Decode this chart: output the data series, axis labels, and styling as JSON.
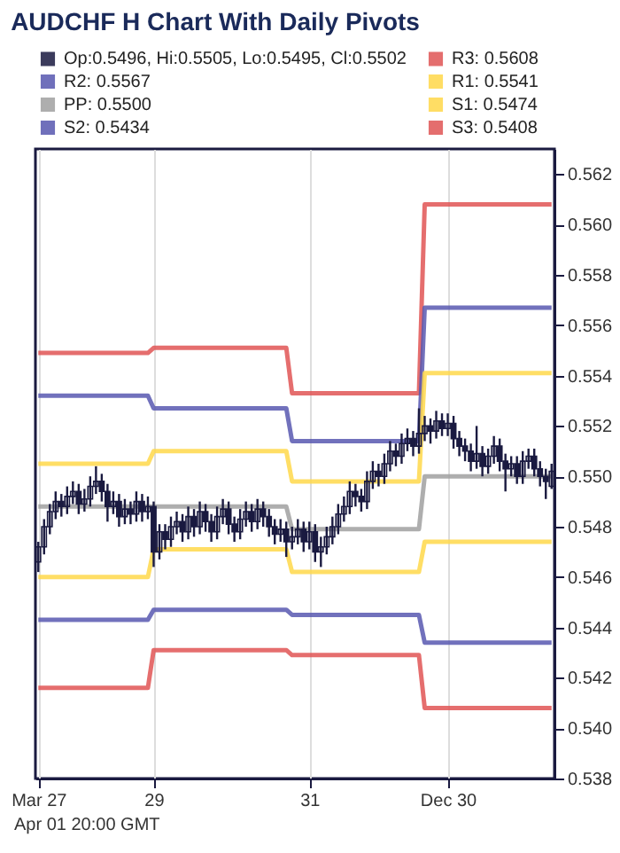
{
  "chart_data": {
    "type": "candlestick",
    "title": "AUDCHF H Chart With Daily Pivots",
    "annotations": [
      "Apr 01 20:00 GMT"
    ],
    "categories": [
      "Mar 27",
      null,
      null,
      null,
      null,
      null,
      null,
      null,
      null,
      null,
      null,
      null,
      null,
      null,
      null,
      null,
      null,
      null,
      null,
      null,
      "29",
      null,
      null,
      null,
      null,
      null,
      null,
      null,
      null,
      null,
      null,
      null,
      null,
      null,
      null,
      null,
      null,
      null,
      null,
      null,
      null,
      null,
      null,
      null,
      null,
      null,
      null,
      "31",
      null,
      null,
      null,
      null,
      null,
      null,
      null,
      null,
      null,
      null,
      null,
      null,
      null,
      null,
      null,
      null,
      null,
      null,
      null,
      null,
      null,
      null,
      null,
      "Dec 30",
      null,
      null,
      null,
      null,
      null,
      null,
      null,
      null,
      null,
      null,
      null,
      null,
      null,
      null,
      null,
      null,
      null,
      null
    ],
    "ylim": [
      0.538,
      0.563
    ],
    "yticks": [
      0.538,
      {
        "value": 0.54,
        "label": "0.540"
      },
      0.542,
      0.544,
      0.546,
      0.548,
      {
        "value": 0.55,
        "label": "0.550"
      },
      0.552,
      0.554,
      0.556,
      0.558,
      {
        "value": 0.56,
        "label": "0.560"
      },
      0.562
    ],
    "grid": "x",
    "legend": "top",
    "series": [
      {
        "type": "candlestick",
        "name": "Op:0.5496, Hi:0.5505, Lo:0.5495, Cl:0.5502",
        "color": "#1a1a40",
        "ohlc": [
          [
            0.5466,
            0.5474,
            0.5462,
            0.5472
          ],
          [
            0.5472,
            0.5483,
            0.5469,
            0.548
          ],
          [
            0.548,
            0.5489,
            0.5477,
            0.5486
          ],
          [
            0.5486,
            0.5494,
            0.5483,
            0.549
          ],
          [
            0.549,
            0.5493,
            0.5484,
            0.5488
          ],
          [
            0.5488,
            0.5496,
            0.5485,
            0.5492
          ],
          [
            0.5492,
            0.5498,
            0.5489,
            0.5494
          ],
          [
            0.5494,
            0.5497,
            0.5485,
            0.5489
          ],
          [
            0.5489,
            0.5495,
            0.5486,
            0.5491
          ],
          [
            0.5491,
            0.55,
            0.5488,
            0.5496
          ],
          [
            0.5496,
            0.5504,
            0.5493,
            0.5498
          ],
          [
            0.5498,
            0.5501,
            0.549,
            0.5494
          ],
          [
            0.5494,
            0.5497,
            0.5482,
            0.5488
          ],
          [
            0.5488,
            0.5494,
            0.5485,
            0.549
          ],
          [
            0.549,
            0.5493,
            0.548,
            0.5484
          ],
          [
            0.5484,
            0.5491,
            0.5481,
            0.5487
          ],
          [
            0.5487,
            0.549,
            0.5481,
            0.5485
          ],
          [
            0.5485,
            0.5494,
            0.5482,
            0.549
          ],
          [
            0.549,
            0.5493,
            0.5482,
            0.5486
          ],
          [
            0.5486,
            0.5492,
            0.5483,
            0.5488
          ],
          [
            0.5488,
            0.549,
            0.5464,
            0.547
          ],
          [
            0.547,
            0.5481,
            0.5467,
            0.5478
          ],
          [
            0.5478,
            0.5481,
            0.5471,
            0.5475
          ],
          [
            0.5475,
            0.5484,
            0.5472,
            0.548
          ],
          [
            0.548,
            0.5486,
            0.5477,
            0.5482
          ],
          [
            0.5482,
            0.5485,
            0.5474,
            0.5478
          ],
          [
            0.5478,
            0.5488,
            0.5475,
            0.5484
          ],
          [
            0.5484,
            0.5487,
            0.5476,
            0.548
          ],
          [
            0.548,
            0.549,
            0.5477,
            0.5486
          ],
          [
            0.5486,
            0.5489,
            0.5478,
            0.5482
          ],
          [
            0.5482,
            0.5485,
            0.5474,
            0.5478
          ],
          [
            0.5478,
            0.5488,
            0.5475,
            0.5484
          ],
          [
            0.5484,
            0.5491,
            0.5481,
            0.5487
          ],
          [
            0.5487,
            0.549,
            0.5477,
            0.5481
          ],
          [
            0.5481,
            0.5484,
            0.5474,
            0.5478
          ],
          [
            0.5478,
            0.5487,
            0.5475,
            0.5483
          ],
          [
            0.5483,
            0.549,
            0.548,
            0.5486
          ],
          [
            0.5486,
            0.5489,
            0.5478,
            0.5482
          ],
          [
            0.5482,
            0.5491,
            0.5479,
            0.5487
          ],
          [
            0.5487,
            0.549,
            0.548,
            0.5484
          ],
          [
            0.5484,
            0.5487,
            0.5476,
            0.548
          ],
          [
            0.548,
            0.5483,
            0.5473,
            0.5477
          ],
          [
            0.5477,
            0.5483,
            0.5474,
            0.5479
          ],
          [
            0.5479,
            0.5482,
            0.5468,
            0.5474
          ],
          [
            0.5474,
            0.548,
            0.5471,
            0.5476
          ],
          [
            0.5476,
            0.5483,
            0.5473,
            0.5479
          ],
          [
            0.5479,
            0.5482,
            0.547,
            0.5474
          ],
          [
            0.5474,
            0.5482,
            0.5471,
            0.5478
          ],
          [
            0.5478,
            0.5481,
            0.5466,
            0.547
          ],
          [
            0.547,
            0.5476,
            0.5464,
            0.5472
          ],
          [
            0.5472,
            0.548,
            0.5469,
            0.5476
          ],
          [
            0.5476,
            0.5484,
            0.5473,
            0.548
          ],
          [
            0.548,
            0.5489,
            0.5477,
            0.5485
          ],
          [
            0.5485,
            0.5492,
            0.5482,
            0.5488
          ],
          [
            0.5488,
            0.5498,
            0.5485,
            0.5494
          ],
          [
            0.5494,
            0.5497,
            0.5488,
            0.5492
          ],
          [
            0.5492,
            0.5495,
            0.5486,
            0.549
          ],
          [
            0.549,
            0.5502,
            0.5487,
            0.5498
          ],
          [
            0.5498,
            0.5506,
            0.5495,
            0.5502
          ],
          [
            0.5502,
            0.5505,
            0.5496,
            0.55
          ],
          [
            0.55,
            0.5509,
            0.5497,
            0.5505
          ],
          [
            0.5505,
            0.5514,
            0.5502,
            0.551
          ],
          [
            0.551,
            0.5513,
            0.5504,
            0.5508
          ],
          [
            0.5508,
            0.5517,
            0.5505,
            0.5513
          ],
          [
            0.5513,
            0.5519,
            0.551,
            0.5515
          ],
          [
            0.5515,
            0.5518,
            0.5508,
            0.5512
          ],
          [
            0.5512,
            0.5527,
            0.5509,
            0.5517
          ],
          [
            0.5517,
            0.5524,
            0.5514,
            0.552
          ],
          [
            0.552,
            0.5523,
            0.5513,
            0.5518
          ],
          [
            0.5518,
            0.5526,
            0.5515,
            0.5522
          ],
          [
            0.5522,
            0.5525,
            0.5516,
            0.5519
          ],
          [
            0.5519,
            0.5525,
            0.5516,
            0.5521
          ],
          [
            0.5521,
            0.5524,
            0.5511,
            0.5515
          ],
          [
            0.5515,
            0.5518,
            0.5508,
            0.5512
          ],
          [
            0.5512,
            0.5515,
            0.5506,
            0.551
          ],
          [
            0.551,
            0.5513,
            0.5502,
            0.5506
          ],
          [
            0.5506,
            0.552,
            0.5503,
            0.5509
          ],
          [
            0.5509,
            0.5512,
            0.55,
            0.5504
          ],
          [
            0.5504,
            0.5511,
            0.5501,
            0.5508
          ],
          [
            0.5508,
            0.5516,
            0.5505,
            0.5512
          ],
          [
            0.5512,
            0.5515,
            0.5502,
            0.5506
          ],
          [
            0.5506,
            0.5509,
            0.5494,
            0.5503
          ],
          [
            0.5503,
            0.5508,
            0.55,
            0.5505
          ],
          [
            0.5505,
            0.5508,
            0.5497,
            0.55
          ],
          [
            0.55,
            0.551,
            0.5497,
            0.5506
          ],
          [
            0.5506,
            0.5511,
            0.5503,
            0.5508
          ],
          [
            0.5508,
            0.5511,
            0.55,
            0.5503
          ],
          [
            0.5503,
            0.5506,
            0.5496,
            0.55
          ],
          [
            0.55,
            0.5503,
            0.5491,
            0.5498
          ],
          [
            0.5496,
            0.5505,
            0.5495,
            0.5502
          ]
        ]
      },
      {
        "type": "line",
        "name": "R3: 0.5608",
        "color": "#e05555",
        "values": [
          0.5549,
          0.5549,
          0.5549,
          0.5549,
          0.5549,
          0.5549,
          0.5549,
          0.5549,
          0.5549,
          0.5549,
          0.5549,
          0.5549,
          0.5549,
          0.5549,
          0.5549,
          0.5549,
          0.5549,
          0.5549,
          0.5549,
          0.5549,
          0.5551,
          0.5551,
          0.5551,
          0.5551,
          0.5551,
          0.5551,
          0.5551,
          0.5551,
          0.5551,
          0.5551,
          0.5551,
          0.5551,
          0.5551,
          0.5551,
          0.5551,
          0.5551,
          0.5551,
          0.5551,
          0.5551,
          0.5551,
          0.5551,
          0.5551,
          0.5551,
          0.5551,
          0.5533,
          0.5533,
          0.5533,
          0.5533,
          0.5533,
          0.5533,
          0.5533,
          0.5533,
          0.5533,
          0.5533,
          0.5533,
          0.5533,
          0.5533,
          0.5533,
          0.5533,
          0.5533,
          0.5533,
          0.5533,
          0.5533,
          0.5533,
          0.5533,
          0.5533,
          0.5533,
          0.5608,
          0.5608,
          0.5608,
          0.5608,
          0.5608,
          0.5608,
          0.5608,
          0.5608,
          0.5608,
          0.5608,
          0.5608,
          0.5608,
          0.5608,
          0.5608,
          0.5608,
          0.5608,
          0.5608,
          0.5608,
          0.5608,
          0.5608,
          0.5608,
          0.5608,
          0.5608
        ]
      },
      {
        "type": "line",
        "name": "R2: 0.5567",
        "color": "#5858b0",
        "values": [
          0.5532,
          0.5532,
          0.5532,
          0.5532,
          0.5532,
          0.5532,
          0.5532,
          0.5532,
          0.5532,
          0.5532,
          0.5532,
          0.5532,
          0.5532,
          0.5532,
          0.5532,
          0.5532,
          0.5532,
          0.5532,
          0.5532,
          0.5532,
          0.5527,
          0.5527,
          0.5527,
          0.5527,
          0.5527,
          0.5527,
          0.5527,
          0.5527,
          0.5527,
          0.5527,
          0.5527,
          0.5527,
          0.5527,
          0.5527,
          0.5527,
          0.5527,
          0.5527,
          0.5527,
          0.5527,
          0.5527,
          0.5527,
          0.5527,
          0.5527,
          0.5527,
          0.5514,
          0.5514,
          0.5514,
          0.5514,
          0.5514,
          0.5514,
          0.5514,
          0.5514,
          0.5514,
          0.5514,
          0.5514,
          0.5514,
          0.5514,
          0.5514,
          0.5514,
          0.5514,
          0.5514,
          0.5514,
          0.5514,
          0.5514,
          0.5514,
          0.5514,
          0.5514,
          0.5567,
          0.5567,
          0.5567,
          0.5567,
          0.5567,
          0.5567,
          0.5567,
          0.5567,
          0.5567,
          0.5567,
          0.5567,
          0.5567,
          0.5567,
          0.5567,
          0.5567,
          0.5567,
          0.5567,
          0.5567,
          0.5567,
          0.5567,
          0.5567,
          0.5567,
          0.5567
        ]
      },
      {
        "type": "line",
        "name": "R1: 0.5541",
        "color": "#ffd84a",
        "values": [
          0.5505,
          0.5505,
          0.5505,
          0.5505,
          0.5505,
          0.5505,
          0.5505,
          0.5505,
          0.5505,
          0.5505,
          0.5505,
          0.5505,
          0.5505,
          0.5505,
          0.5505,
          0.5505,
          0.5505,
          0.5505,
          0.5505,
          0.5505,
          0.551,
          0.551,
          0.551,
          0.551,
          0.551,
          0.551,
          0.551,
          0.551,
          0.551,
          0.551,
          0.551,
          0.551,
          0.551,
          0.551,
          0.551,
          0.551,
          0.551,
          0.551,
          0.551,
          0.551,
          0.551,
          0.551,
          0.551,
          0.551,
          0.5498,
          0.5498,
          0.5498,
          0.5498,
          0.5498,
          0.5498,
          0.5498,
          0.5498,
          0.5498,
          0.5498,
          0.5498,
          0.5498,
          0.5498,
          0.5498,
          0.5498,
          0.5498,
          0.5498,
          0.5498,
          0.5498,
          0.5498,
          0.5498,
          0.5498,
          0.5498,
          0.5541,
          0.5541,
          0.5541,
          0.5541,
          0.5541,
          0.5541,
          0.5541,
          0.5541,
          0.5541,
          0.5541,
          0.5541,
          0.5541,
          0.5541,
          0.5541,
          0.5541,
          0.5541,
          0.5541,
          0.5541,
          0.5541,
          0.5541,
          0.5541,
          0.5541,
          0.5541
        ]
      },
      {
        "type": "line",
        "name": "PP: 0.5500",
        "color": "#a0a0a0",
        "values": [
          0.5488,
          0.5488,
          0.5488,
          0.5488,
          0.5488,
          0.5488,
          0.5488,
          0.5488,
          0.5488,
          0.5488,
          0.5488,
          0.5488,
          0.5488,
          0.5488,
          0.5488,
          0.5488,
          0.5488,
          0.5488,
          0.5488,
          0.5488,
          0.5488,
          0.5488,
          0.5488,
          0.5488,
          0.5488,
          0.5488,
          0.5488,
          0.5488,
          0.5488,
          0.5488,
          0.5488,
          0.5488,
          0.5488,
          0.5488,
          0.5488,
          0.5488,
          0.5488,
          0.5488,
          0.5488,
          0.5488,
          0.5488,
          0.5488,
          0.5488,
          0.5488,
          0.5479,
          0.5479,
          0.5479,
          0.5479,
          0.5479,
          0.5479,
          0.5479,
          0.5479,
          0.5479,
          0.5479,
          0.5479,
          0.5479,
          0.5479,
          0.5479,
          0.5479,
          0.5479,
          0.5479,
          0.5479,
          0.5479,
          0.5479,
          0.5479,
          0.5479,
          0.5479,
          0.55,
          0.55,
          0.55,
          0.55,
          0.55,
          0.55,
          0.55,
          0.55,
          0.55,
          0.55,
          0.55,
          0.55,
          0.55,
          0.55,
          0.55,
          0.55,
          0.55,
          0.55,
          0.55,
          0.55,
          0.55,
          0.55,
          0.55
        ]
      },
      {
        "type": "line",
        "name": "S1: 0.5474",
        "color": "#ffd84a",
        "values": [
          0.546,
          0.546,
          0.546,
          0.546,
          0.546,
          0.546,
          0.546,
          0.546,
          0.546,
          0.546,
          0.546,
          0.546,
          0.546,
          0.546,
          0.546,
          0.546,
          0.546,
          0.546,
          0.546,
          0.546,
          0.5471,
          0.5471,
          0.5471,
          0.5471,
          0.5471,
          0.5471,
          0.5471,
          0.5471,
          0.5471,
          0.5471,
          0.5471,
          0.5471,
          0.5471,
          0.5471,
          0.5471,
          0.5471,
          0.5471,
          0.5471,
          0.5471,
          0.5471,
          0.5471,
          0.5471,
          0.5471,
          0.5471,
          0.5462,
          0.5462,
          0.5462,
          0.5462,
          0.5462,
          0.5462,
          0.5462,
          0.5462,
          0.5462,
          0.5462,
          0.5462,
          0.5462,
          0.5462,
          0.5462,
          0.5462,
          0.5462,
          0.5462,
          0.5462,
          0.5462,
          0.5462,
          0.5462,
          0.5462,
          0.5462,
          0.5474,
          0.5474,
          0.5474,
          0.5474,
          0.5474,
          0.5474,
          0.5474,
          0.5474,
          0.5474,
          0.5474,
          0.5474,
          0.5474,
          0.5474,
          0.5474,
          0.5474,
          0.5474,
          0.5474,
          0.5474,
          0.5474,
          0.5474,
          0.5474,
          0.5474,
          0.5474
        ]
      },
      {
        "type": "line",
        "name": "S2: 0.5434",
        "color": "#5858b0",
        "values": [
          0.5443,
          0.5443,
          0.5443,
          0.5443,
          0.5443,
          0.5443,
          0.5443,
          0.5443,
          0.5443,
          0.5443,
          0.5443,
          0.5443,
          0.5443,
          0.5443,
          0.5443,
          0.5443,
          0.5443,
          0.5443,
          0.5443,
          0.5443,
          0.5447,
          0.5447,
          0.5447,
          0.5447,
          0.5447,
          0.5447,
          0.5447,
          0.5447,
          0.5447,
          0.5447,
          0.5447,
          0.5447,
          0.5447,
          0.5447,
          0.5447,
          0.5447,
          0.5447,
          0.5447,
          0.5447,
          0.5447,
          0.5447,
          0.5447,
          0.5447,
          0.5447,
          0.5445,
          0.5445,
          0.5445,
          0.5445,
          0.5445,
          0.5445,
          0.5445,
          0.5445,
          0.5445,
          0.5445,
          0.5445,
          0.5445,
          0.5445,
          0.5445,
          0.5445,
          0.5445,
          0.5445,
          0.5445,
          0.5445,
          0.5445,
          0.5445,
          0.5445,
          0.5445,
          0.5434,
          0.5434,
          0.5434,
          0.5434,
          0.5434,
          0.5434,
          0.5434,
          0.5434,
          0.5434,
          0.5434,
          0.5434,
          0.5434,
          0.5434,
          0.5434,
          0.5434,
          0.5434,
          0.5434,
          0.5434,
          0.5434,
          0.5434,
          0.5434,
          0.5434,
          0.5434
        ]
      },
      {
        "type": "line",
        "name": "S3: 0.5408",
        "color": "#e05555",
        "values": [
          0.5416,
          0.5416,
          0.5416,
          0.5416,
          0.5416,
          0.5416,
          0.5416,
          0.5416,
          0.5416,
          0.5416,
          0.5416,
          0.5416,
          0.5416,
          0.5416,
          0.5416,
          0.5416,
          0.5416,
          0.5416,
          0.5416,
          0.5416,
          0.5431,
          0.5431,
          0.5431,
          0.5431,
          0.5431,
          0.5431,
          0.5431,
          0.5431,
          0.5431,
          0.5431,
          0.5431,
          0.5431,
          0.5431,
          0.5431,
          0.5431,
          0.5431,
          0.5431,
          0.5431,
          0.5431,
          0.5431,
          0.5431,
          0.5431,
          0.5431,
          0.5431,
          0.5429,
          0.5429,
          0.5429,
          0.5429,
          0.5429,
          0.5429,
          0.5429,
          0.5429,
          0.5429,
          0.5429,
          0.5429,
          0.5429,
          0.5429,
          0.5429,
          0.5429,
          0.5429,
          0.5429,
          0.5429,
          0.5429,
          0.5429,
          0.5429,
          0.5429,
          0.5429,
          0.5408,
          0.5408,
          0.5408,
          0.5408,
          0.5408,
          0.5408,
          0.5408,
          0.5408,
          0.5408,
          0.5408,
          0.5408,
          0.5408,
          0.5408,
          0.5408,
          0.5408,
          0.5408,
          0.5408,
          0.5408,
          0.5408,
          0.5408,
          0.5408,
          0.5408,
          0.5408
        ]
      }
    ]
  }
}
